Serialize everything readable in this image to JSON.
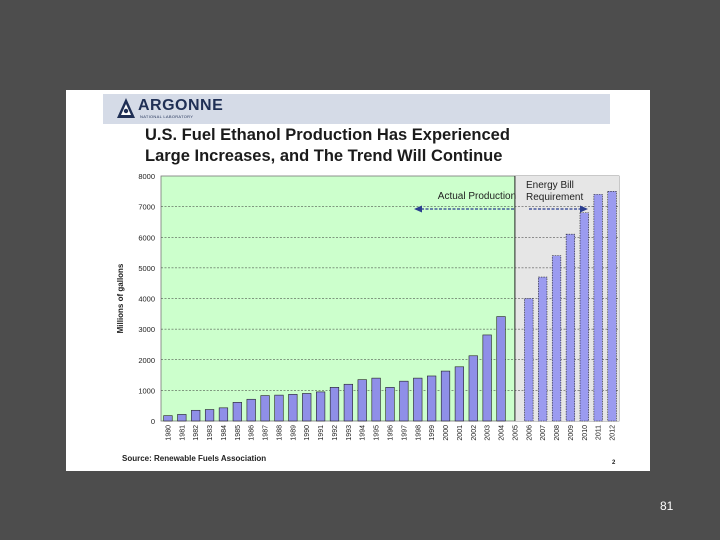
{
  "logo": {
    "name": "ARGONNE",
    "subtitle": "NATIONAL LABORATORY"
  },
  "slide": {
    "title_line1": "U.S. Fuel Ethanol Production Has Experienced",
    "title_line2": "Large Increases, and The Trend Will Continue",
    "source": "Source: Renewable Fuels Association",
    "page_footer": "2"
  },
  "slide_number": "81",
  "colors": {
    "background": "#4d4d4d",
    "plot_area": "#ccffcc",
    "actual_bar": "#8f8fe8",
    "projected_bar": "#9b9bf0",
    "header_band": "#d5dbe7"
  },
  "chart_data": {
    "type": "bar",
    "title": "",
    "xlabel": "",
    "ylabel": "Millions of gallons",
    "ylim": [
      0,
      8000
    ],
    "yticks": [
      0,
      1000,
      2000,
      3000,
      4000,
      5000,
      6000,
      7000,
      8000
    ],
    "grid": true,
    "categories": [
      "1980",
      "1981",
      "1982",
      "1983",
      "1984",
      "1985",
      "1986",
      "1987",
      "1988",
      "1989",
      "1990",
      "1991",
      "1992",
      "1993",
      "1994",
      "1995",
      "1996",
      "1997",
      "1998",
      "1999",
      "2000",
      "2001",
      "2002",
      "2003",
      "2004",
      "2005",
      "2006",
      "2007",
      "2008",
      "2009",
      "2010",
      "2011",
      "2012"
    ],
    "series": [
      {
        "name": "Actual Production",
        "values": [
          175,
          215,
          350,
          375,
          430,
          610,
          710,
          830,
          845,
          870,
          900,
          950,
          1100,
          1200,
          1350,
          1400,
          1100,
          1300,
          1400,
          1470,
          1630,
          1770,
          2130,
          2810,
          3410,
          null,
          null,
          null,
          null,
          null,
          null,
          null,
          null
        ]
      },
      {
        "name": "Energy Bill Requirement",
        "values": [
          null,
          null,
          null,
          null,
          null,
          null,
          null,
          null,
          null,
          null,
          null,
          null,
          null,
          null,
          null,
          null,
          null,
          null,
          null,
          null,
          null,
          null,
          null,
          null,
          null,
          null,
          4000,
          4700,
          5400,
          6100,
          6800,
          7400,
          7500
        ]
      }
    ],
    "annotations": [
      {
        "text": "Actual Production"
      },
      {
        "text": "Energy Bill\nRequirement"
      }
    ]
  }
}
